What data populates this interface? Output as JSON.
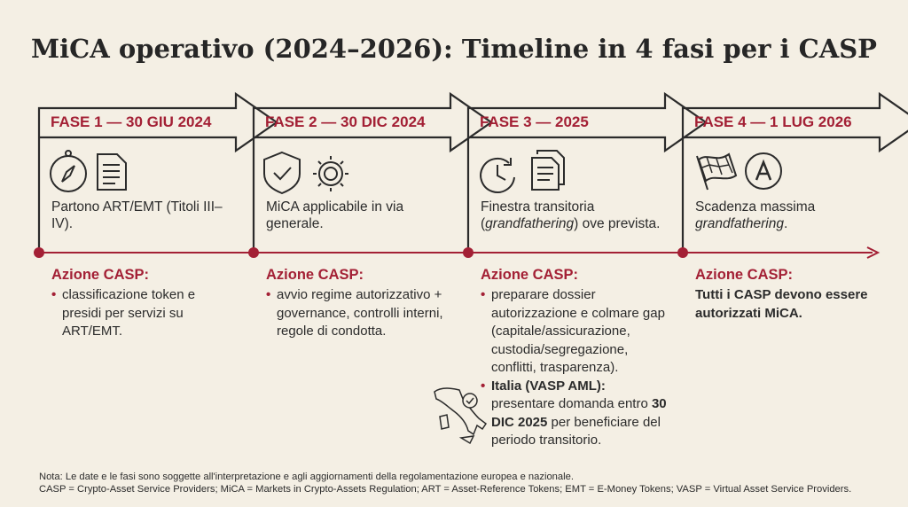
{
  "title": "MiCA operativo (2024–2026): Timeline in 4 fasi per i CASP",
  "phases": [
    {
      "label": "FASE 1 — 30 GIU 2024",
      "description": [
        {
          "text": "Partono ART/EMT (Titoli III–IV).",
          "italic": false
        }
      ],
      "action_label": "Azione CASP:",
      "actions": [
        {
          "bullet": true,
          "parts": [
            {
              "text": "classificazione token e presidi per servizi su ART/EMT.",
              "bold": false
            }
          ]
        }
      ]
    },
    {
      "label": "FASE 2 — 30 DIC 2024",
      "description": [
        {
          "text": "MiCA applicabile in via generale.",
          "italic": false
        }
      ],
      "action_label": "Azione CASP:",
      "actions": [
        {
          "bullet": true,
          "parts": [
            {
              "text": "avvio regime autorizzativo + governance, controlli interni, regole di condotta.",
              "bold": false
            }
          ]
        }
      ]
    },
    {
      "label": "FASE 3 — 2025",
      "description": [
        {
          "text": "Finestra transitoria (",
          "italic": false
        },
        {
          "text": "grandfathering",
          "italic": true
        },
        {
          "text": ") ove prevista.",
          "italic": false
        }
      ],
      "action_label": "Azione CASP:",
      "actions": [
        {
          "bullet": true,
          "parts": [
            {
              "text": "preparare dossier autorizzazione e colmare gap (capitale/assicurazione, custodia/segregazione, conflitti, trasparenza).",
              "bold": false
            }
          ]
        },
        {
          "bullet": true,
          "parts": [
            {
              "text": "Italia (VASP AML):",
              "bold": true
            },
            {
              "text": " presentare domanda entro ",
              "bold": false
            },
            {
              "text": "30 DIC 2025",
              "bold": true
            },
            {
              "text": " per beneficiare del periodo transitorio.",
              "bold": false
            }
          ]
        }
      ]
    },
    {
      "label": "FASE 4 — 1 LUG 2026",
      "description": [
        {
          "text": "Scadenza massima ",
          "italic": false
        },
        {
          "text": "grandfathering",
          "italic": true
        },
        {
          "text": ".",
          "italic": false
        }
      ],
      "action_label": "Azione CASP:",
      "actions": [
        {
          "bullet": false,
          "parts": [
            {
              "text": "Tutti i CASP devono essere autorizzati MiCA.",
              "bold": true
            }
          ]
        }
      ]
    }
  ],
  "bullet_symbol": "•",
  "note": [
    "Nota: Le date e le fasi sono soggette all'interpretazione e agli aggiornamenti della regolamentazione europea e nazionale.",
    "CASP = Crypto-Asset Service Providers; MiCA = Markets in Crypto-Assets Regulation; ART = Asset-Reference Tokens; EMT = E-Money Tokens; VASP = Virtual Asset Service Providers."
  ]
}
